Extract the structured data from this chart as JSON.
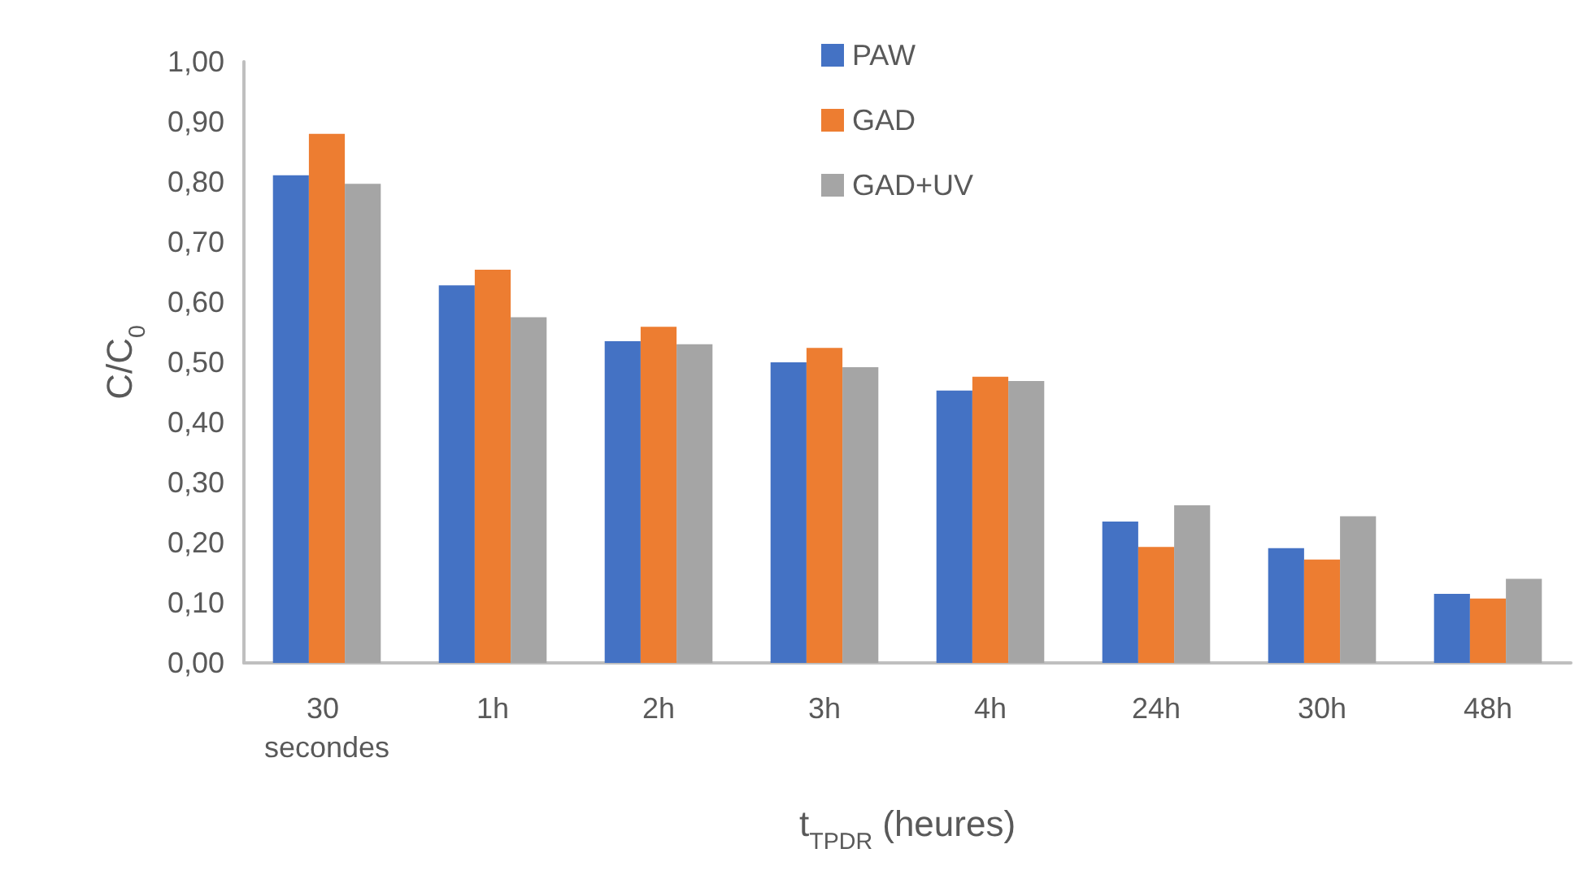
{
  "chart_data": {
    "type": "bar",
    "categories": [
      "30 secondes",
      "1h",
      "2h",
      "3h",
      "4h",
      "24h",
      "30h",
      "48h"
    ],
    "series": [
      {
        "name": "PAW",
        "color": "#4472c4",
        "values": [
          0.811,
          0.628,
          0.535,
          0.5,
          0.453,
          0.235,
          0.191,
          0.115
        ]
      },
      {
        "name": "GAD",
        "color": "#ed7d31",
        "values": [
          0.88,
          0.654,
          0.559,
          0.524,
          0.476,
          0.193,
          0.172,
          0.107
        ]
      },
      {
        "name": "GAD+UV",
        "color": "#a5a5a5",
        "values": [
          0.797,
          0.575,
          0.53,
          0.492,
          0.469,
          0.262,
          0.244,
          0.14
        ]
      }
    ],
    "xlabel": "t$_{TPDR}$ (heures)",
    "ylabel": "C/C$_{0}$",
    "ylim": [
      0,
      1
    ],
    "yticks": [
      {
        "value": 0,
        "label": "0,00"
      },
      {
        "value": 0.1,
        "label": "0,10"
      },
      {
        "value": 0.2,
        "label": "0,20"
      },
      {
        "value": 0.3,
        "label": "0,30"
      },
      {
        "value": 0.4,
        "label": "0,40"
      },
      {
        "value": 0.5,
        "label": "0,50"
      },
      {
        "value": 0.6,
        "label": "0,60"
      },
      {
        "value": 0.7,
        "label": "0,70"
      },
      {
        "value": 0.8,
        "label": "0,80"
      },
      {
        "value": 0.9,
        "label": "0,90"
      },
      {
        "value": 1,
        "label": "1,00"
      }
    ],
    "grid": false,
    "legend": "top"
  }
}
